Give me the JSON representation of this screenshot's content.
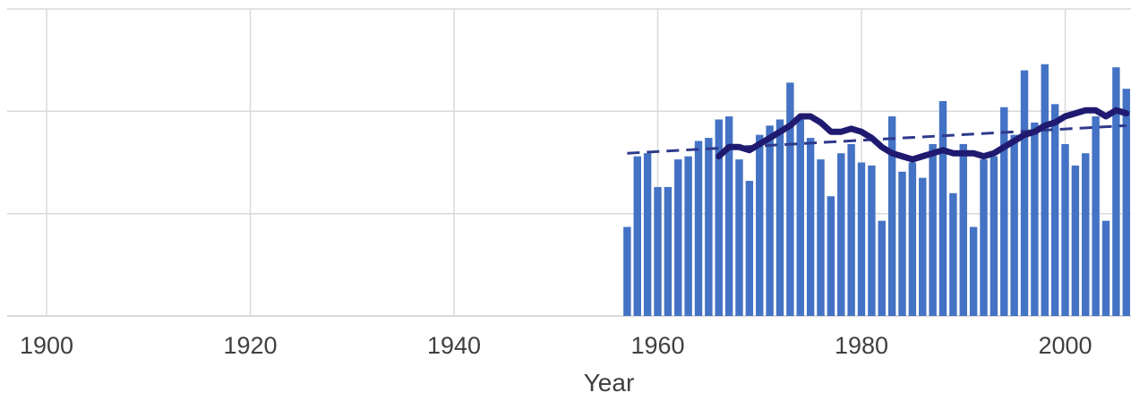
{
  "chart_data": {
    "type": "bar",
    "xlabel": "Year",
    "ylabel": "",
    "title": "",
    "x_ticks": [
      1900,
      1920,
      1940,
      1960,
      1980,
      2000
    ],
    "xlim": [
      1896,
      2006
    ],
    "ylim": [
      0,
      100
    ],
    "y_gridlines": [
      33.3,
      66.7,
      100
    ],
    "grid": true,
    "colors": {
      "bars": "#4472c4",
      "smooth_line": "#1f1a70",
      "trend_line": "#2e3a8c",
      "grid": "#d9d9d9"
    },
    "bars": {
      "x": [
        1957,
        1958,
        1959,
        1960,
        1961,
        1962,
        1963,
        1964,
        1965,
        1966,
        1967,
        1968,
        1969,
        1970,
        1971,
        1972,
        1973,
        1974,
        1975,
        1976,
        1977,
        1978,
        1979,
        1980,
        1981,
        1982,
        1983,
        1984,
        1985,
        1986,
        1987,
        1988,
        1989,
        1990,
        1991,
        1992,
        1993,
        1994,
        1995,
        1996,
        1997,
        1998,
        1999,
        2000,
        2001,
        2002,
        2003,
        2004,
        2005,
        2006
      ],
      "values": [
        29,
        52,
        53,
        42,
        42,
        51,
        52,
        57,
        58,
        64,
        65,
        51,
        44,
        59,
        62,
        64,
        76,
        64,
        58,
        51,
        39,
        53,
        56,
        50,
        49,
        31,
        65,
        47,
        50,
        45,
        56,
        70,
        40,
        56,
        29,
        51,
        52,
        68,
        59,
        80,
        63,
        82,
        69,
        56,
        49,
        53,
        65,
        31,
        81,
        74
      ]
    },
    "smoothed_series": {
      "x": [
        1966,
        1967,
        1968,
        1969,
        1970,
        1971,
        1972,
        1973,
        1974,
        1975,
        1976,
        1977,
        1978,
        1979,
        1980,
        1981,
        1982,
        1983,
        1984,
        1985,
        1986,
        1987,
        1988,
        1989,
        1990,
        1991,
        1992,
        1993,
        1994,
        1995,
        1996,
        1997,
        1998,
        1999,
        2000,
        2001,
        2002,
        2003,
        2004,
        2005,
        2006
      ],
      "values": [
        52,
        55,
        55,
        54,
        56,
        58,
        60,
        62,
        65,
        65,
        63,
        60,
        60,
        61,
        60,
        58,
        55,
        53,
        52,
        51,
        52,
        53,
        54,
        53,
        53,
        53,
        52,
        53,
        55,
        57,
        59,
        60,
        62,
        63,
        65,
        66,
        67,
        67,
        65,
        67,
        66
      ]
    },
    "trend_line": {
      "x": [
        1957,
        2006
      ],
      "values": [
        53,
        62
      ]
    }
  }
}
